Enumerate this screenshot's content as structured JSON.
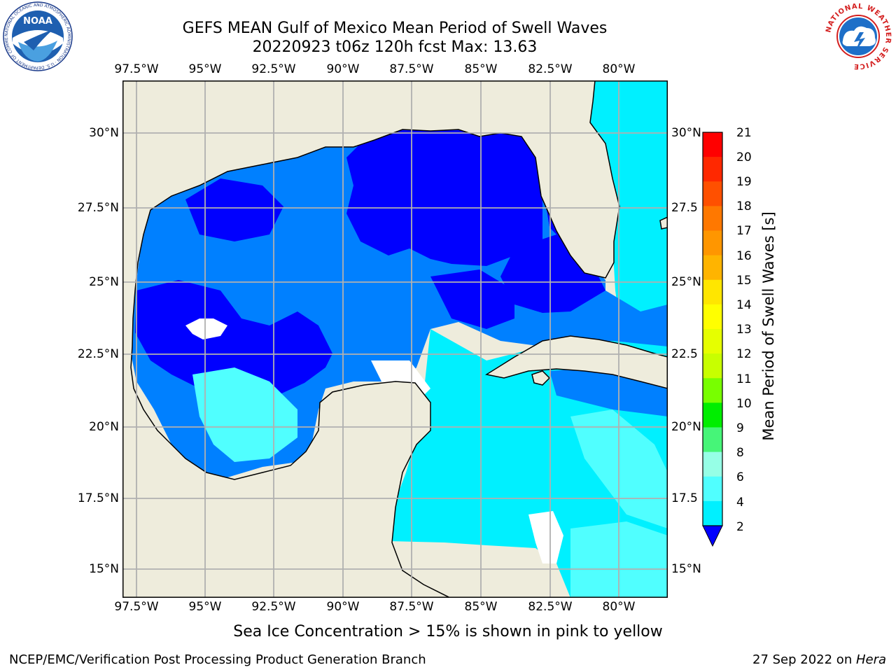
{
  "header": {
    "title_line1": "GEFS MEAN Gulf of Mexico Mean Period of Swell Waves",
    "title_line2": "20220923 t06z 120h fcst   Max: 13.63"
  },
  "logos": {
    "noaa": "NOAA",
    "noaa_ring": "NATIONAL OCEANIC AND ATMOSPHERIC ADMINISTRATION · U.S. DEPARTMENT OF COMMERCE",
    "nws_ring": "NATIONAL WEATHER SERVICE"
  },
  "map": {
    "lon_labels": [
      "97.5°W",
      "95°W",
      "92.5°W",
      "90°W",
      "87.5°W",
      "85°W",
      "82.5°W",
      "80°W"
    ],
    "lat_labels_left": [
      "30°N",
      "27.5°N",
      "25°N",
      "22.5°N",
      "20°N",
      "17.5°N",
      "15°N"
    ],
    "lat_labels_right": [
      "30°N",
      "27.5",
      "25°N",
      "22.5",
      "20°N",
      "17.5",
      "15°N"
    ],
    "colors": {
      "land": "#eeecdc",
      "grid": "#b0b0b0",
      "coast": "#000000"
    }
  },
  "colorbar": {
    "label": "Mean Period of Swell Waves [s]",
    "ticks": [
      "21",
      "20",
      "19",
      "18",
      "17",
      "16",
      "15",
      "14",
      "13",
      "12",
      "11",
      "10",
      "9",
      "8",
      "6",
      "4",
      "2"
    ],
    "colors": [
      "#ff0000",
      "#ff2800",
      "#ff5000",
      "#ff7800",
      "#ff9600",
      "#ffb400",
      "#ffe600",
      "#ffff00",
      "#e6ff00",
      "#c8ff00",
      "#78ff00",
      "#00ee00",
      "#46f578",
      "#96ffe6",
      "#50ffff",
      "#00f0ff",
      "#0080ff"
    ],
    "under_color": "#0000ff"
  },
  "footer": {
    "ice_note": "Sea Ice Concentration > 15% is shown in pink to yellow",
    "credit_left": "NCEP/EMC/Verification Post Processing Product Generation Branch",
    "credit_right_date": "27 Sep 2022 on ",
    "credit_right_host": "Hera"
  }
}
